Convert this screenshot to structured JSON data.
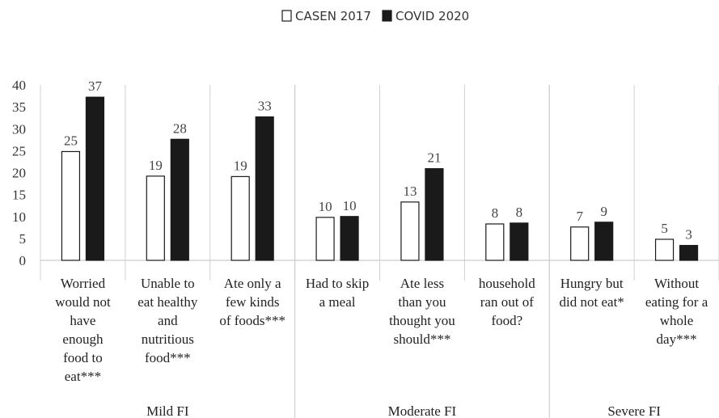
{
  "chart_data": {
    "type": "bar",
    "title": "",
    "xlabel": "",
    "ylabel": "",
    "ylim": [
      0,
      40
    ],
    "yticks": [
      0,
      5,
      10,
      15,
      20,
      25,
      30,
      35,
      40
    ],
    "legend_position": "top-center",
    "categories": [
      "Worried would not have enough food to eat***",
      "Unable to eat healthy and nutritious food***",
      "Ate only a few kinds of foods***",
      "Had to skip a meal",
      "Ate less than you thought you should***",
      "household ran out of food?",
      "Hungry but did not eat*",
      "Without eating for a whole day***"
    ],
    "category_lines": [
      [
        "Worried",
        "would not",
        "have",
        "enough",
        "food to",
        "eat***"
      ],
      [
        "Unable to",
        "eat healthy",
        "and",
        "nutritious",
        "food***"
      ],
      [
        "Ate only a",
        "few kinds",
        "of foods***"
      ],
      [
        "Had to skip",
        "a meal"
      ],
      [
        "Ate less",
        "than you",
        "thought you",
        "should***"
      ],
      [
        "household",
        "ran out of",
        "food?"
      ],
      [
        "Hungry but",
        "did not eat*"
      ],
      [
        "Without",
        "eating for a",
        "whole",
        "day***"
      ]
    ],
    "groups": [
      {
        "label": "Mild FI",
        "start": 0,
        "end": 2
      },
      {
        "label": "Moderate FI",
        "start": 3,
        "end": 5
      },
      {
        "label": "Severe FI",
        "start": 6,
        "end": 7
      }
    ],
    "series": [
      {
        "name": "CASEN 2017",
        "color": "#ffffff",
        "values": [
          25,
          19,
          19,
          10,
          13,
          8,
          7,
          5
        ]
      },
      {
        "name": "COVID 2020",
        "color": "#1a1a1a",
        "values": [
          37,
          28,
          33,
          10,
          21,
          8,
          9,
          3
        ]
      }
    ],
    "plot_values": [
      [
        24.8,
        19.2,
        19.1,
        9.8,
        13.3,
        8.3,
        7.6,
        4.8
      ],
      [
        37.2,
        27.6,
        32.7,
        10.0,
        20.9,
        8.5,
        8.7,
        3.4
      ]
    ]
  }
}
